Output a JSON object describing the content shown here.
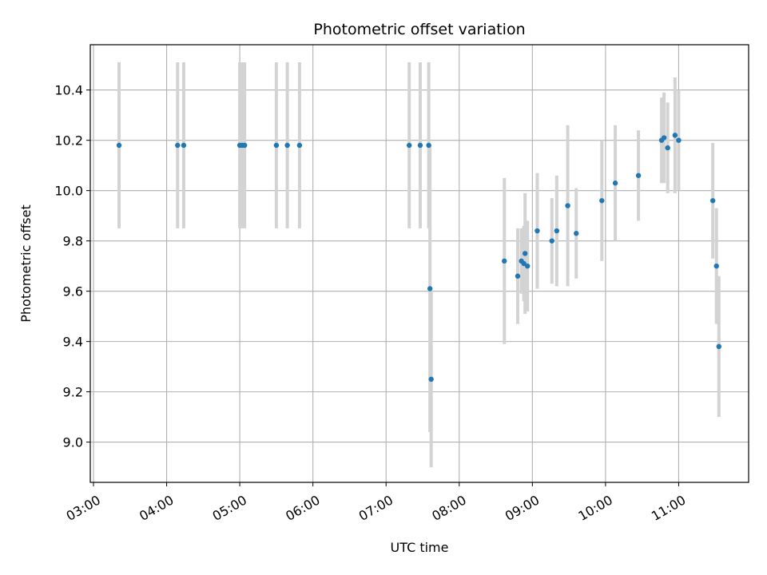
{
  "chart_data": {
    "type": "scatter",
    "title": "Photometric offset variation",
    "xlabel": "UTC time",
    "ylabel": "Photometric offset",
    "xlim": [
      "03:00",
      "12:00"
    ],
    "ylim": [
      8.84,
      10.58
    ],
    "x_ticks": [
      "03:00",
      "04:00",
      "05:00",
      "06:00",
      "07:00",
      "08:00",
      "09:00",
      "10:00",
      "11:00"
    ],
    "y_ticks": [
      "9.0",
      "9.2",
      "9.4",
      "9.6",
      "9.8",
      "10.0",
      "10.2",
      "10.4"
    ],
    "grid": true,
    "colors": {
      "point": "#1f77b4",
      "errorbar": "#d3d3d3",
      "grid": "#b0b0b0"
    },
    "points": [
      {
        "t": "03:21",
        "y": 10.18,
        "err": 0.33
      },
      {
        "t": "04:09",
        "y": 10.18,
        "err": 0.33
      },
      {
        "t": "04:14",
        "y": 10.18,
        "err": 0.33
      },
      {
        "t": "05:00",
        "y": 10.18,
        "err": 0.33
      },
      {
        "t": "05:02",
        "y": 10.18,
        "err": 0.33
      },
      {
        "t": "05:04",
        "y": 10.18,
        "err": 0.33
      },
      {
        "t": "05:30",
        "y": 10.18,
        "err": 0.33
      },
      {
        "t": "05:39",
        "y": 10.18,
        "err": 0.33
      },
      {
        "t": "05:49",
        "y": 10.18,
        "err": 0.33
      },
      {
        "t": "07:19",
        "y": 10.18,
        "err": 0.33
      },
      {
        "t": "07:28",
        "y": 10.18,
        "err": 0.33
      },
      {
        "t": "07:35",
        "y": 10.18,
        "err": 0.33
      },
      {
        "t": "07:36",
        "y": 9.61,
        "err": 0.57
      },
      {
        "t": "07:37",
        "y": 9.25,
        "err": 0.35
      },
      {
        "t": "08:37",
        "y": 9.72,
        "err": 0.33
      },
      {
        "t": "08:48",
        "y": 9.66,
        "err": 0.19
      },
      {
        "t": "08:51",
        "y": 9.72,
        "err": 0.13
      },
      {
        "t": "08:53",
        "y": 9.71,
        "err": 0.15
      },
      {
        "t": "08:54",
        "y": 9.75,
        "err": 0.24
      },
      {
        "t": "08:56",
        "y": 9.7,
        "err": 0.18
      },
      {
        "t": "09:04",
        "y": 9.84,
        "err": 0.23
      },
      {
        "t": "09:16",
        "y": 9.8,
        "err": 0.17
      },
      {
        "t": "09:20",
        "y": 9.84,
        "err": 0.22
      },
      {
        "t": "09:29",
        "y": 9.94,
        "err": 0.32
      },
      {
        "t": "09:36",
        "y": 9.83,
        "err": 0.18
      },
      {
        "t": "09:57",
        "y": 9.96,
        "err": 0.24
      },
      {
        "t": "10:08",
        "y": 10.03,
        "err": 0.23
      },
      {
        "t": "10:27",
        "y": 10.06,
        "err": 0.18
      },
      {
        "t": "10:46",
        "y": 10.2,
        "err": 0.17
      },
      {
        "t": "10:48",
        "y": 10.21,
        "err": 0.18
      },
      {
        "t": "10:51",
        "y": 10.17,
        "err": 0.18
      },
      {
        "t": "10:57",
        "y": 10.22,
        "err": 0.23
      },
      {
        "t": "11:00",
        "y": 10.2,
        "err": 0.2
      },
      {
        "t": "11:28",
        "y": 9.96,
        "err": 0.23
      },
      {
        "t": "11:31",
        "y": 9.7,
        "err": 0.23
      },
      {
        "t": "11:33",
        "y": 9.38,
        "err": 0.28
      }
    ]
  }
}
